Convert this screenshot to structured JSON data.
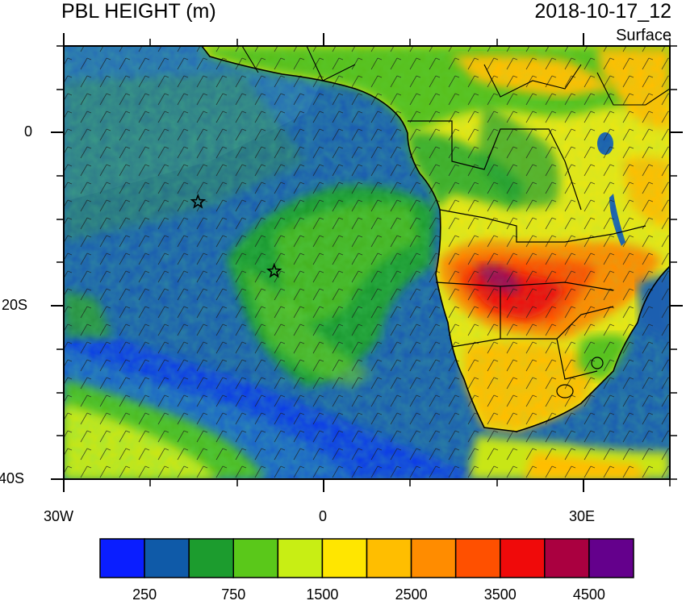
{
  "header": {
    "title": "PBL HEIGHT (m)",
    "datetime": "2018-10-17_12",
    "level": "Surface"
  },
  "map": {
    "lon_labels": [
      "30W",
      "0",
      "30E"
    ],
    "lat_labels": [
      "0",
      "20S",
      "40S"
    ],
    "lon_range": [
      -30,
      40
    ],
    "lat_range": [
      -40,
      10
    ],
    "markers": [
      {
        "name": "star-marker",
        "lon": -14.5,
        "lat": -8
      },
      {
        "name": "star-marker",
        "lon": -5.7,
        "lat": -16
      }
    ]
  },
  "colorbar": {
    "colors": [
      "#0a1eff",
      "#0f5aa8",
      "#1c9c2e",
      "#5ac81a",
      "#c8ee14",
      "#ffe600",
      "#ffbe00",
      "#ff8c00",
      "#ff5000",
      "#f00a0a",
      "#aa0040",
      "#64008c"
    ],
    "labels": [
      "250",
      "750",
      "1500",
      "2500",
      "3500",
      "4500"
    ]
  }
}
